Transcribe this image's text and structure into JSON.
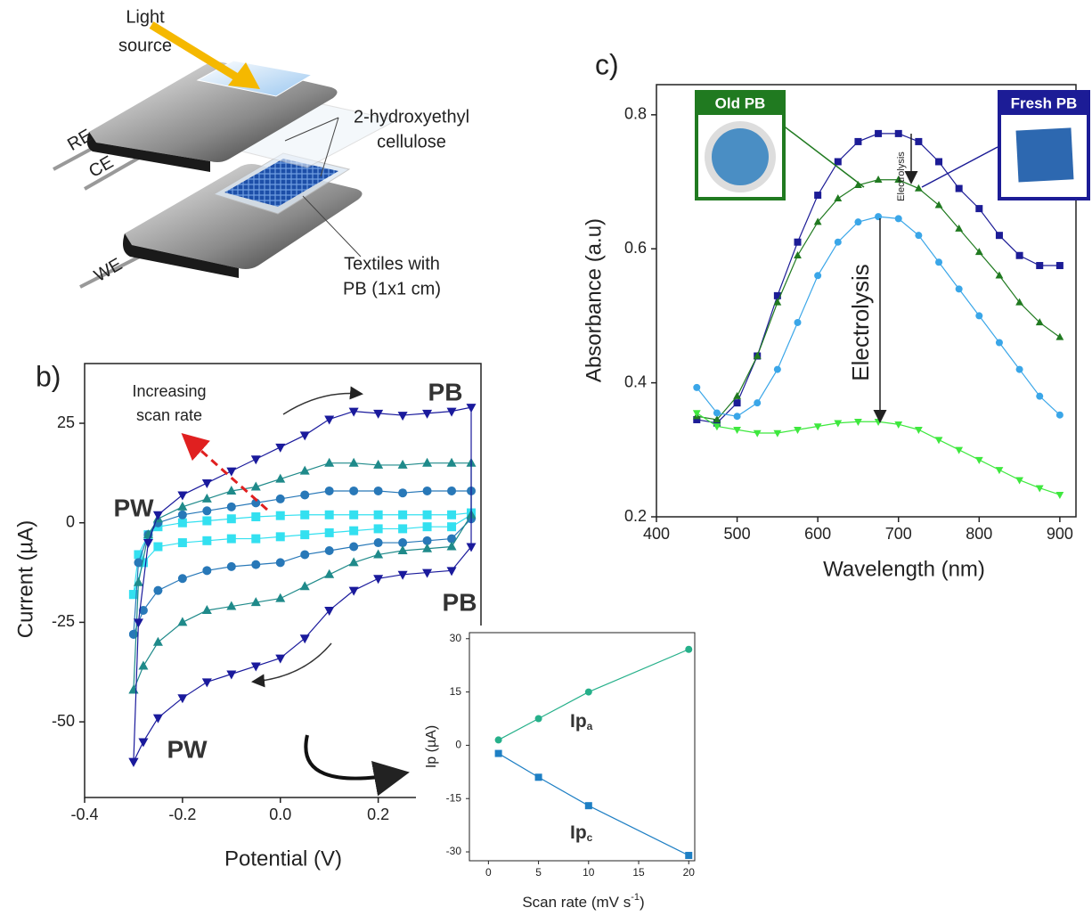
{
  "diagram": {
    "light_source": [
      "Light",
      "source"
    ],
    "cellulose": [
      "2-hydroxyethyl",
      "cellulose"
    ],
    "textiles": [
      "Textiles with",
      "PB (1x1 cm)"
    ],
    "electrodes": [
      "RE",
      "CE",
      "WE"
    ]
  },
  "chart_data": [
    {
      "type": "line",
      "panel_label": "b)",
      "x_label": "Potential (V)",
      "y_label": "Current (µA)",
      "x": [
        -0.3,
        -0.29,
        -0.27,
        -0.25,
        -0.2,
        -0.15,
        -0.1,
        -0.05,
        0,
        0.05,
        0.1,
        0.15,
        0.2,
        0.25,
        0.3,
        0.35,
        0.39,
        0.39,
        0.35,
        0.3,
        0.25,
        0.2,
        0.15,
        0.1,
        0.05,
        0,
        -0.05,
        -0.1,
        -0.15,
        -0.2,
        -0.25,
        -0.28,
        -0.3
      ],
      "xlim": [
        -0.4,
        0.41
      ],
      "xticks": [
        -0.4,
        -0.2,
        {
          "value": 0,
          "label": "0.0"
        },
        0.2
      ],
      "ylim": [
        -69,
        40
      ],
      "yticks": [
        -50,
        -25,
        0,
        25
      ],
      "series": [
        {
          "color": "#33e0f0",
          "marker": "square",
          "values": [
            -18,
            -8,
            -3,
            -1,
            0,
            0.5,
            1,
            1.5,
            1.8,
            2,
            2,
            2,
            2,
            2,
            2,
            2,
            2.5,
            2,
            -1,
            -1,
            -1.5,
            -1.5,
            -2,
            -2.5,
            -3,
            -3.5,
            -4,
            -4,
            -4.5,
            -5,
            -6,
            -10,
            -18
          ]
        },
        {
          "color": "#2878b8",
          "marker": "circle",
          "values": [
            -28,
            -10,
            -3,
            0,
            2,
            3,
            4,
            5,
            6,
            7,
            8,
            8,
            8,
            7.5,
            8,
            8,
            8,
            1,
            -4,
            -4.5,
            -5,
            -5,
            -6,
            -7,
            -8,
            -10,
            -10.5,
            -11,
            -12,
            -14,
            -17,
            -22,
            -28
          ]
        },
        {
          "color": "#1f8a8a",
          "marker": "triangle-up",
          "values": [
            -42,
            -15,
            -3,
            1,
            4,
            6,
            8,
            9,
            11,
            13,
            15,
            15,
            14.5,
            14.5,
            15,
            15,
            15,
            2,
            -6,
            -6.5,
            -7,
            -8,
            -10,
            -13,
            -16,
            -19,
            -20,
            -21,
            -22,
            -25,
            -30,
            -36,
            -42
          ]
        },
        {
          "color": "#1a1a9c",
          "marker": "triangle-down",
          "values": [
            -60,
            -25,
            -5,
            2,
            7,
            10,
            13,
            16,
            19,
            22,
            26,
            28,
            27.5,
            27,
            27.5,
            28,
            29,
            -6,
            -12,
            -12.5,
            -13,
            -14,
            -17,
            -22,
            -29,
            -34,
            -36,
            -38,
            -40,
            -44,
            -49,
            -55,
            -60
          ]
        }
      ],
      "annotations": {
        "scan_rate": [
          "Increasing",
          "scan rate"
        ],
        "pb_top": "PB",
        "pw_top": "PW",
        "pb_bottom": "PB",
        "pw_bottom": "PW"
      }
    },
    {
      "type": "line",
      "panel_label": "c)",
      "x_label": "Wavelength (nm)",
      "y_label": "Absorbance (a.u)",
      "x": [
        450,
        475,
        500,
        525,
        550,
        575,
        600,
        625,
        650,
        675,
        700,
        725,
        750,
        775,
        800,
        825,
        850,
        875,
        900
      ],
      "xlim": [
        400,
        920
      ],
      "xticks": [
        400,
        500,
        600,
        700,
        800,
        900
      ],
      "ylim": [
        0.2,
        0.845
      ],
      "yticks": [
        0.2,
        0.4,
        0.6,
        0.8
      ],
      "series": [
        {
          "color": "#1c1c96",
          "marker": "square",
          "values": [
            0.345,
            0.34,
            0.37,
            0.44,
            0.53,
            0.61,
            0.68,
            0.73,
            0.76,
            0.772,
            0.772,
            0.76,
            0.73,
            0.69,
            0.66,
            0.62,
            0.59,
            0.575,
            0.575
          ]
        },
        {
          "color": "#207a20",
          "marker": "triangle-up",
          "values": [
            0.35,
            0.345,
            0.38,
            0.44,
            0.52,
            0.59,
            0.64,
            0.675,
            0.695,
            0.703,
            0.703,
            0.69,
            0.665,
            0.63,
            0.595,
            0.56,
            0.52,
            0.49,
            0.468
          ]
        },
        {
          "color": "#3aa6e8",
          "marker": "circle",
          "values": [
            0.393,
            0.355,
            0.35,
            0.37,
            0.42,
            0.49,
            0.56,
            0.61,
            0.64,
            0.648,
            0.645,
            0.62,
            0.58,
            0.54,
            0.5,
            0.46,
            0.42,
            0.38,
            0.352
          ]
        },
        {
          "color": "#3ee83e",
          "marker": "triangle-down",
          "values": [
            0.355,
            0.335,
            0.33,
            0.325,
            0.325,
            0.33,
            0.335,
            0.34,
            0.342,
            0.342,
            0.338,
            0.33,
            0.315,
            0.3,
            0.285,
            0.27,
            0.255,
            0.243,
            0.233
          ]
        }
      ],
      "annotations": {
        "electrolysis_large": "Electrolysis",
        "electrolysis_small": "Electrolysis",
        "old": "Old PB",
        "fresh": "Fresh PB"
      }
    },
    {
      "type": "line",
      "y_label": "Ip (µA)",
      "x_label": {
        "text": "Scan rate (mV s",
        "sup": "-1",
        "tail": ")"
      },
      "x": [
        1,
        5,
        10,
        20
      ],
      "xlim": [
        -1.9,
        20.6
      ],
      "xticks": [
        0,
        5,
        10,
        15,
        20
      ],
      "ylim": [
        -32.5,
        31.7
      ],
      "yticks": [
        -30,
        -15,
        0,
        15,
        30
      ],
      "series": [
        {
          "color": "#26b08a",
          "marker": "circle",
          "values": [
            1.5,
            7.5,
            15,
            27
          ]
        },
        {
          "color": "#1e7fc4",
          "marker": "square",
          "values": [
            -2.3,
            -9,
            -17,
            -31
          ]
        }
      ],
      "annotations": {
        "ipa": {
          "text": "Ip",
          "sub": "a"
        },
        "ipc": {
          "text": "Ip",
          "sub": "c"
        }
      }
    }
  ]
}
